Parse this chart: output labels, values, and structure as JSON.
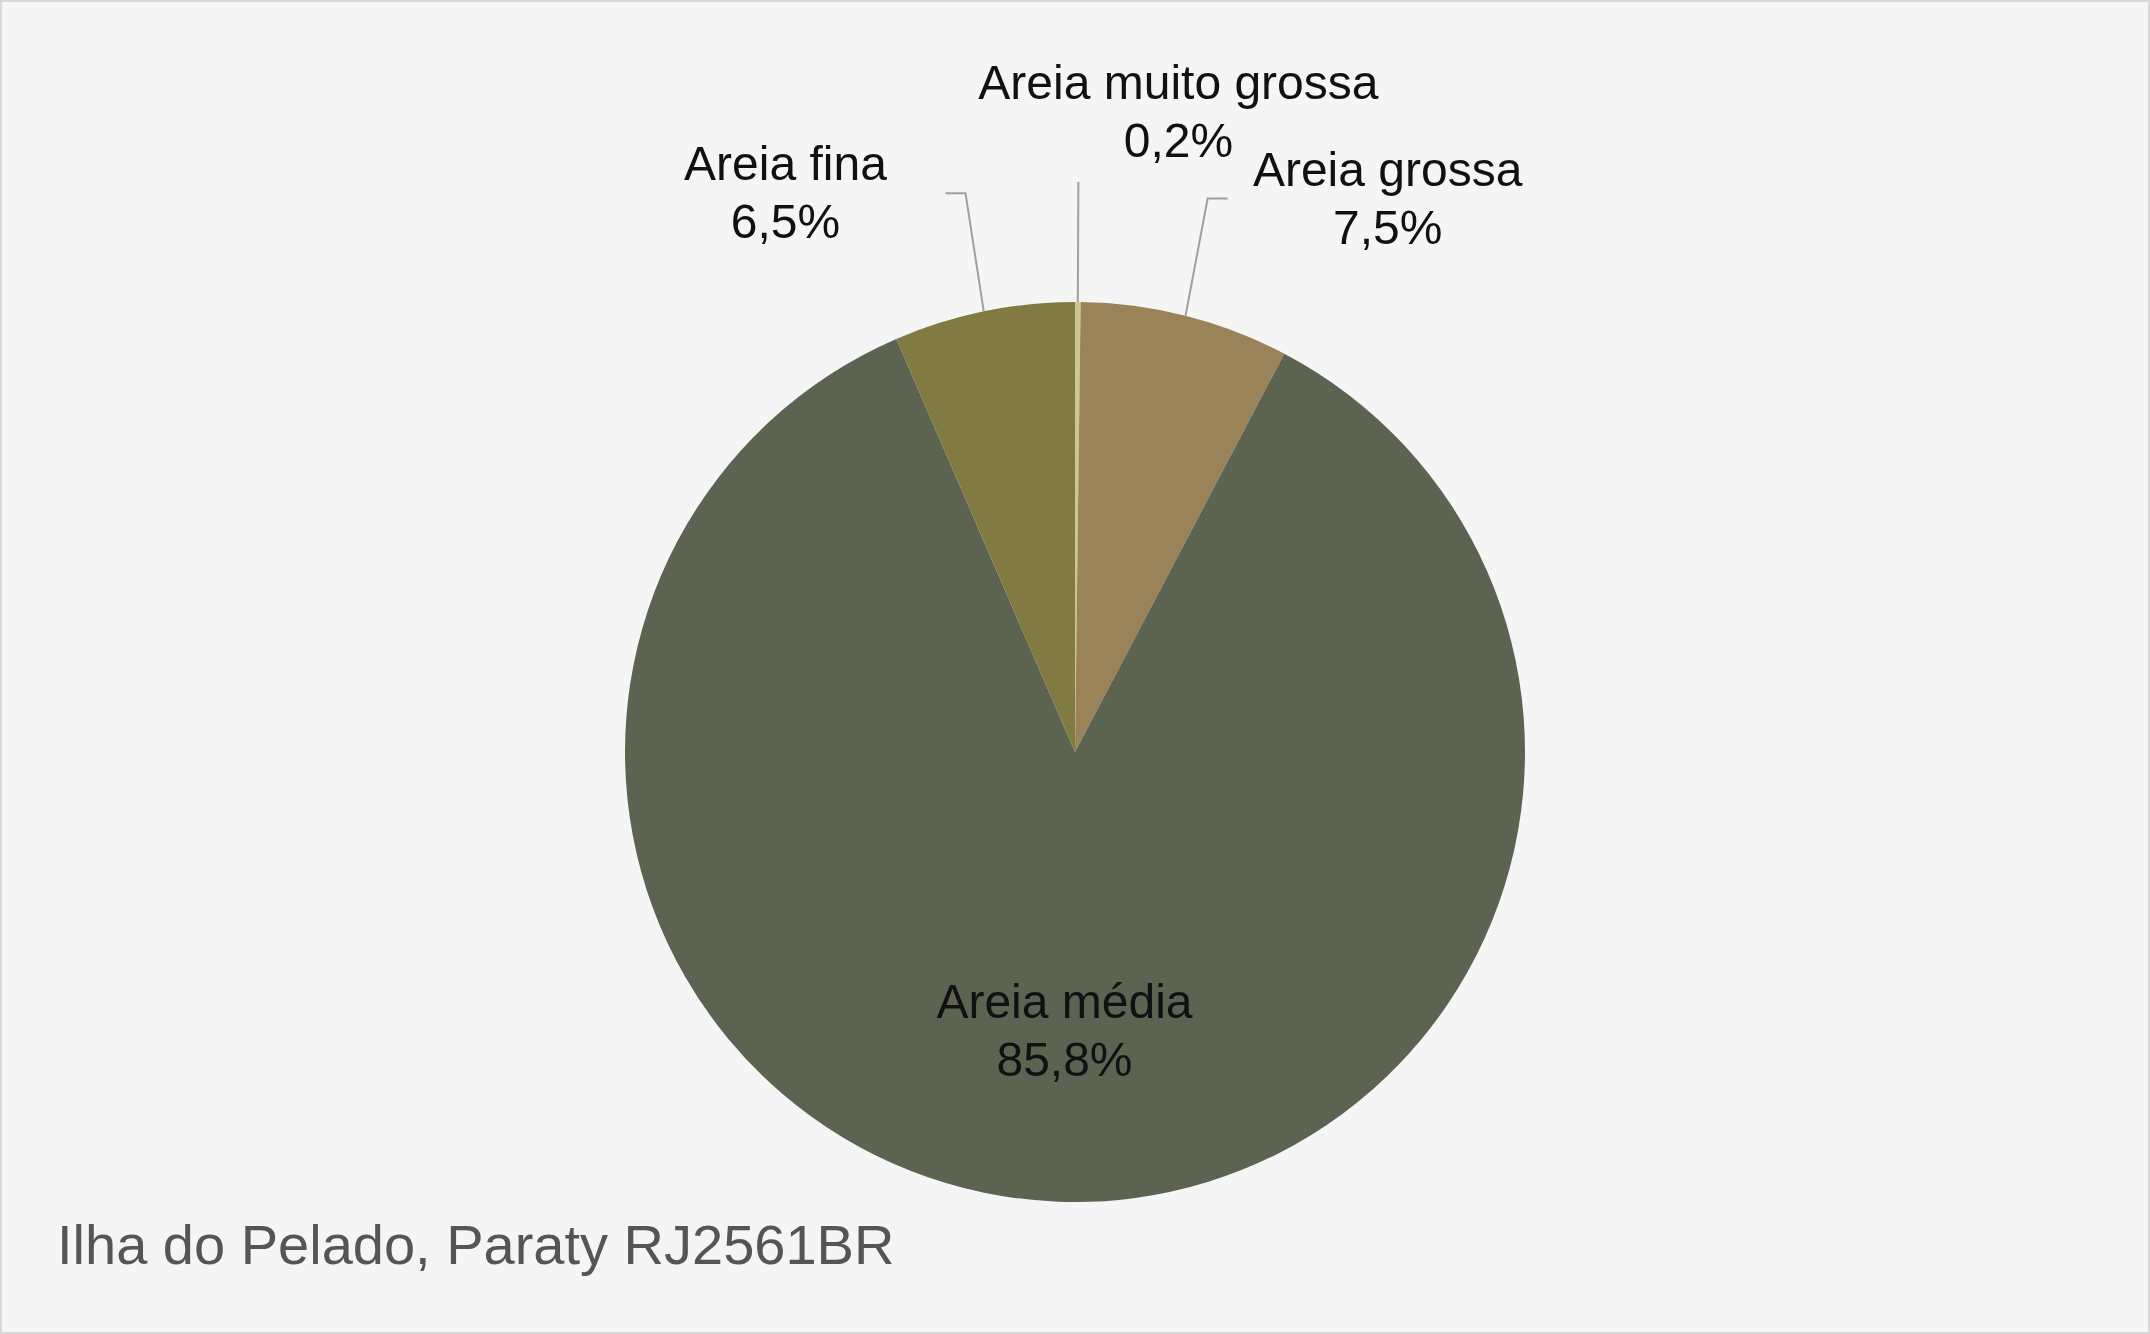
{
  "chart_data": {
    "type": "pie",
    "categories": [
      "Areia muito grossa",
      "Areia grossa",
      "Areia média",
      "Areia fina"
    ],
    "values": [
      0.2,
      7.5,
      85.8,
      6.5
    ],
    "value_labels": [
      "0,2%",
      "7,5%",
      "85,8%",
      "6,5%"
    ],
    "colors": [
      "#c9c98f",
      "#9a8358",
      "#5c6451",
      "#817a42"
    ],
    "annotations": [
      "Ilha do Pelado, Paraty RJ2561BR"
    ]
  }
}
